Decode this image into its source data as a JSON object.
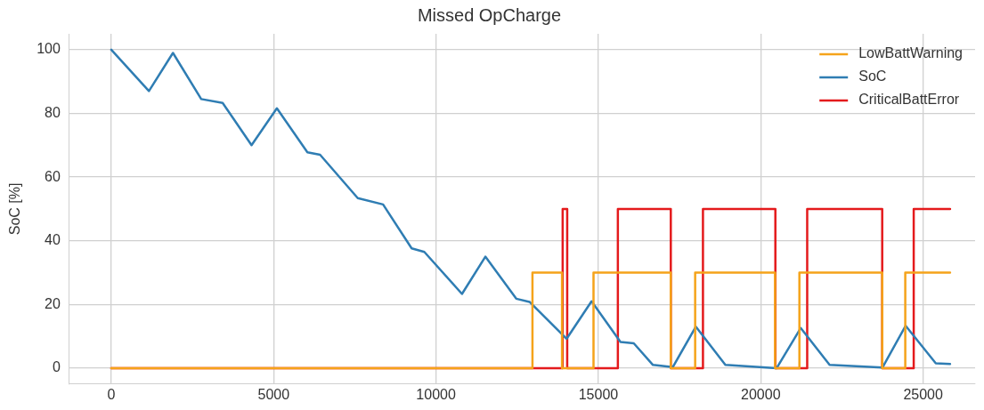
{
  "chart_data": {
    "type": "line",
    "title": "Missed OpCharge",
    "ylabel": "SoC [%]",
    "xlim": [
      -1290,
      26600
    ],
    "xticks": [
      0,
      5000,
      10000,
      15000,
      20000,
      25000
    ],
    "ylim": [
      -5,
      105
    ],
    "yticks": [
      0,
      20,
      40,
      60,
      80,
      100
    ],
    "grid": true,
    "legend": "top right",
    "marker": "none",
    "line_style": "solid",
    "series": [
      {
        "name": "LowBattWarning",
        "type": "step",
        "color": "#f5a31a",
        "x": [
          0,
          12970,
          13880,
          14850,
          17230,
          17980,
          20440,
          21190,
          23740,
          24450,
          25830
        ],
        "values": [
          0,
          30,
          0,
          30,
          0,
          30,
          0,
          30,
          0,
          30,
          30
        ]
      },
      {
        "name": "SoC",
        "type": "line",
        "color": "#2f7db3",
        "x": [
          0,
          1160,
          1900,
          2770,
          3430,
          4320,
          5100,
          6040,
          6430,
          7590,
          8370,
          9250,
          9640,
          10800,
          11520,
          12470,
          12880,
          14020,
          14790,
          15680,
          16090,
          16680,
          17290,
          18000,
          18910,
          20490,
          21230,
          22120,
          23750,
          24460,
          25390,
          25830
        ],
        "values": [
          100,
          87,
          99,
          84.5,
          83.3,
          70,
          81.6,
          67.8,
          67,
          53.4,
          51.4,
          37.6,
          36.5,
          23.3,
          35,
          21.8,
          20.8,
          9.2,
          21,
          8.2,
          7.8,
          1,
          0.3,
          13,
          1,
          0,
          12.6,
          1,
          0.2,
          13.3,
          1.5,
          1.3
        ]
      },
      {
        "name": "CriticalBattError",
        "type": "step",
        "color": "#e41a1c",
        "x": [
          0,
          13900,
          14040,
          15600,
          17230,
          18220,
          20450,
          21430,
          23740,
          24710,
          25830
        ],
        "values": [
          0,
          50,
          0,
          50,
          0,
          50,
          0,
          50,
          0,
          50,
          50
        ]
      }
    ]
  }
}
